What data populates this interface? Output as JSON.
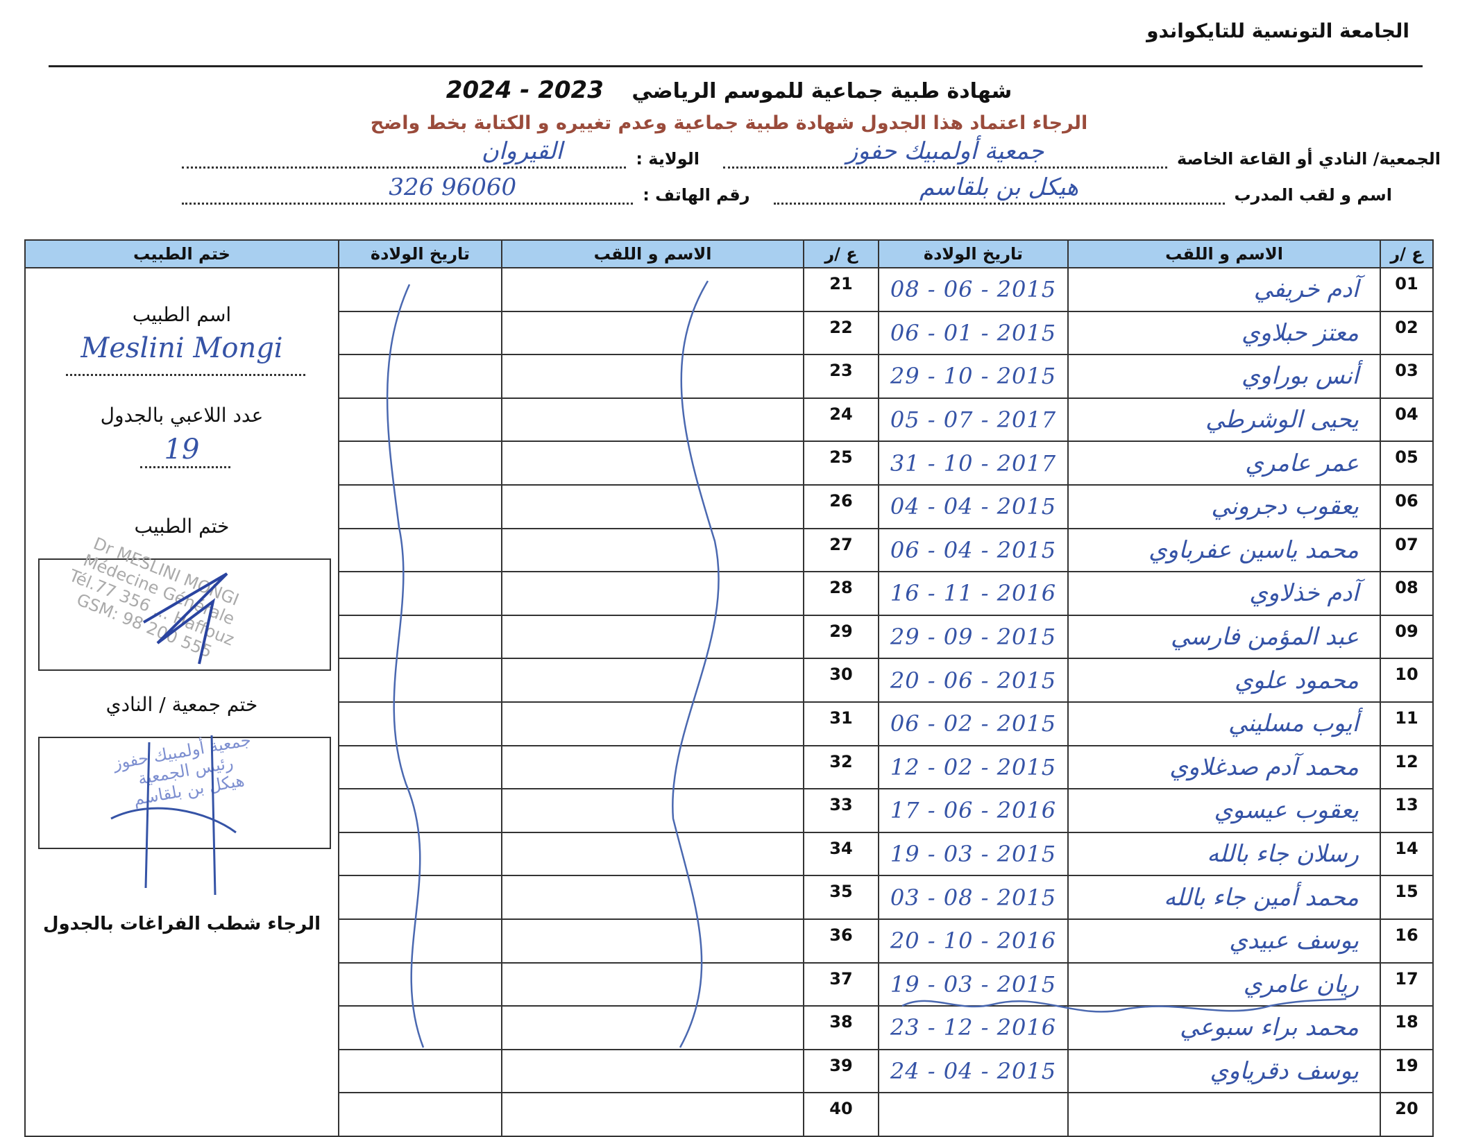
{
  "federation": "الجامعة التونسية للتايكواندو",
  "title": {
    "text": "شهادة طبية جماعية   للموسم الرياضي",
    "season": "2023 - 2024"
  },
  "subtitle": "الرجاء اعتماد هذا الجدول  شهادة طبية جماعية وعدم تغييره و الكتابة بخط واضح",
  "fields": {
    "club_label": "الجمعية/ النادي أو القاعة الخاصة",
    "club_value": "جمعية أولمبيك حفوز",
    "wilaya_label": "الولاية :",
    "wilaya_value": "القيروان",
    "coach_label": "اسم و لقب المدرب",
    "coach_value": "هيكل بن بلقاسم",
    "phone_label": "رقم الهاتف :",
    "phone_value": "96060 326"
  },
  "table": {
    "headers": {
      "num": "ع /ر",
      "name": "الاسم و اللقب",
      "dob": "تاريخ الولادة",
      "stamp": "ختم الطبيب"
    },
    "rows_right": [
      {
        "num": "01",
        "name": "آدم خريفي",
        "dob": "2015 - 06 - 08"
      },
      {
        "num": "02",
        "name": "معتز حبلاوي",
        "dob": "2015 - 01 - 06"
      },
      {
        "num": "03",
        "name": "أنس بوراوي",
        "dob": "2015 - 10 - 29"
      },
      {
        "num": "04",
        "name": "يحيى الوشرطي",
        "dob": "2017 - 07 - 05"
      },
      {
        "num": "05",
        "name": "عمر عامري",
        "dob": "2017 - 10 - 31"
      },
      {
        "num": "06",
        "name": "يعقوب دجروني",
        "dob": "2015 - 04 - 04"
      },
      {
        "num": "07",
        "name": "محمد ياسين عفرباوي",
        "dob": "2015 - 04 - 06"
      },
      {
        "num": "08",
        "name": "آدم خذلاوي",
        "dob": "2016 - 11 - 16"
      },
      {
        "num": "09",
        "name": "عبد المؤمن فارسي",
        "dob": "2015 - 09 - 29"
      },
      {
        "num": "10",
        "name": "محمود علوي",
        "dob": "2015 - 06 - 20"
      },
      {
        "num": "11",
        "name": "أيوب مسليني",
        "dob": "2015 - 02 - 06"
      },
      {
        "num": "12",
        "name": "محمد آدم صدغلاوي",
        "dob": "2015 - 02 - 12"
      },
      {
        "num": "13",
        "name": "يعقوب عيسوي",
        "dob": "2016 - 06 - 17"
      },
      {
        "num": "14",
        "name": "رسلان جاء بالله",
        "dob": "2015 - 03 - 19"
      },
      {
        "num": "15",
        "name": "محمد أمين جاء بالله",
        "dob": "2015 - 08 - 03"
      },
      {
        "num": "16",
        "name": "يوسف عبيدي",
        "dob": "2016 - 10 - 20"
      },
      {
        "num": "17",
        "name": "ريان عامري",
        "dob": "2015 - 03 - 19"
      },
      {
        "num": "18",
        "name": "محمد براء سبوعي",
        "dob": "2016 - 12 - 23"
      },
      {
        "num": "19",
        "name": "يوسف دقرياوي",
        "dob": "2015 - 04 - 24"
      },
      {
        "num": "20",
        "name": "",
        "dob": ""
      }
    ],
    "rows_left": [
      {
        "num": "21"
      },
      {
        "num": "22"
      },
      {
        "num": "23"
      },
      {
        "num": "24"
      },
      {
        "num": "25"
      },
      {
        "num": "26"
      },
      {
        "num": "27"
      },
      {
        "num": "28"
      },
      {
        "num": "29"
      },
      {
        "num": "30"
      },
      {
        "num": "31"
      },
      {
        "num": "32"
      },
      {
        "num": "33"
      },
      {
        "num": "34"
      },
      {
        "num": "35"
      },
      {
        "num": "36"
      },
      {
        "num": "37"
      },
      {
        "num": "38"
      },
      {
        "num": "39"
      },
      {
        "num": "40"
      }
    ]
  },
  "side": {
    "doctor_name_label": "اسم الطبيب",
    "doctor_name_value": "Meslini Mongi",
    "players_count_label": "عدد اللاعبي بالجدول",
    "players_count_value": "19",
    "doctor_stamp_label": "ختم الطبيب",
    "doctor_stamp_text": "Dr MESLINI MONGI\nMédecine Générale\nTél.77 356 ... Haffouz\nGSM: 98 200 555",
    "club_stamp_label": "ختم جمعية / النادي",
    "club_stamp_text": "جمعية أولمبيك حفوز\nرئيس الجمعية\nهيكل بن بلقاسم",
    "footer_note": "الرجاء شطب  الفراغات بالجدول"
  },
  "colors": {
    "header_bg": "#a8cff0",
    "ink": "#3553a6",
    "subtitle": "#9a4b3b"
  }
}
